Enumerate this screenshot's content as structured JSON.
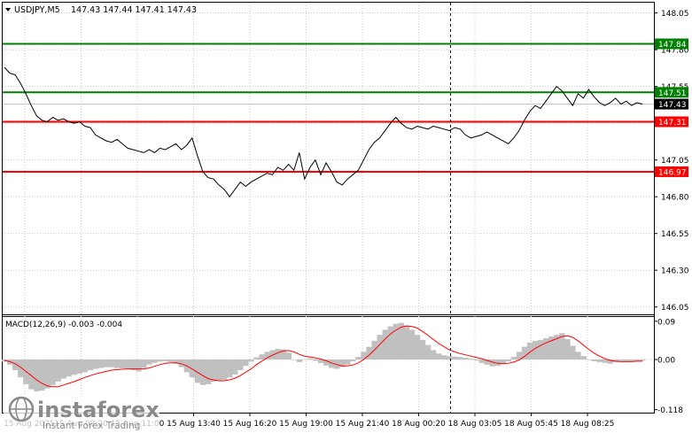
{
  "header": {
    "symbol_label": "USDJPY,M5",
    "ohlc": "147.43 147.44 147.41 147.43"
  },
  "macd_header": {
    "label": "MACD(12,26,9) -0.003 -0.004"
  },
  "watermark": {
    "brand": "instaforex",
    "tagline": "Instant Forex Trading"
  },
  "colors": {
    "price_line": "#000000",
    "resistance": "#008000",
    "support": "#ff0000",
    "macd_hist": "#c0c0c0",
    "macd_signal": "#ff0000",
    "current_price_box": "#000000",
    "grid": "#c8c8c8"
  },
  "chart_data": [
    {
      "type": "line",
      "title": "USDJPY,M5",
      "ylim": [
        146.0,
        148.12
      ],
      "y_ticks": [
        "148.05",
        "147.80",
        "147.55",
        "147.30",
        "147.05",
        "146.80",
        "146.55",
        "146.30",
        "146.05"
      ],
      "y_tick_values": [
        148.05,
        147.8,
        147.55,
        147.3,
        147.05,
        146.8,
        146.55,
        146.3,
        146.05
      ],
      "x_ticks": [
        "15 Aug 2025",
        "15 Aug 08:20",
        "15 Aug 11:00",
        "15 Aug 13:40",
        "15 Aug 16:20",
        "15 Aug 19:00",
        "15 Aug 21:40",
        "18 Aug 00:20",
        "18 Aug 03:05",
        "18 Aug 05:45",
        "18 Aug 08:25"
      ],
      "levels": [
        {
          "value": 147.84,
          "label": "147.84",
          "role": "resistance"
        },
        {
          "value": 147.51,
          "label": "147.51",
          "role": "resistance"
        },
        {
          "value": 147.31,
          "label": "147.31",
          "role": "support"
        },
        {
          "value": 146.97,
          "label": "146.97",
          "role": "support"
        }
      ],
      "current_price": {
        "value": 147.43,
        "label": "147.43"
      },
      "series": [
        {
          "values": [
            147.68,
            147.64,
            147.63,
            147.57,
            147.5,
            147.42,
            147.35,
            147.32,
            147.31,
            147.34,
            147.32,
            147.33,
            147.31,
            147.3,
            147.31,
            147.28,
            147.27,
            147.22,
            147.2,
            147.18,
            147.17,
            147.19,
            147.16,
            147.13,
            147.12,
            147.11,
            147.1,
            147.12,
            147.1,
            147.13,
            147.12,
            147.14,
            147.16,
            147.12,
            147.15,
            147.2,
            147.08,
            146.97,
            146.93,
            146.92,
            146.88,
            146.85,
            146.8,
            146.85,
            146.9,
            146.87,
            146.9,
            146.92,
            146.94,
            146.96,
            146.95,
            147.0,
            146.98,
            147.02,
            146.98,
            147.1,
            146.92,
            147.0,
            147.05,
            146.95,
            147.03,
            146.97,
            146.9,
            146.88,
            146.92,
            146.95,
            146.98,
            147.05,
            147.12,
            147.17,
            147.2,
            147.25,
            147.3,
            147.34,
            147.3,
            147.27,
            147.26,
            147.28,
            147.27,
            147.26,
            147.28,
            147.27,
            147.26,
            147.25,
            147.27,
            147.26,
            147.22,
            147.2,
            147.21,
            147.22,
            147.24,
            147.22,
            147.2,
            147.18,
            147.16,
            147.2,
            147.25,
            147.32,
            147.38,
            147.42,
            147.4,
            147.45,
            147.5,
            147.55,
            147.52,
            147.47,
            147.42,
            147.5,
            147.47,
            147.53,
            147.48,
            147.44,
            147.42,
            147.44,
            147.47,
            147.43,
            147.45,
            147.42,
            147.44,
            147.43
          ]
        }
      ]
    },
    {
      "type": "bar",
      "title": "MACD(12,26,9) -0.003 -0.004",
      "ylim": [
        -0.125,
        0.1
      ],
      "y_ticks": [
        "0.09",
        "0.00",
        "-0.118"
      ],
      "y_tick_values": [
        0.09,
        0.0,
        -0.118
      ],
      "series": [
        {
          "name": "MACD",
          "values": [
            -0.005,
            -0.012,
            -0.025,
            -0.042,
            -0.058,
            -0.07,
            -0.075,
            -0.073,
            -0.068,
            -0.06,
            -0.052,
            -0.045,
            -0.04,
            -0.036,
            -0.033,
            -0.03,
            -0.025,
            -0.022,
            -0.02,
            -0.018,
            -0.018,
            -0.02,
            -0.021,
            -0.022,
            -0.025,
            -0.028,
            -0.02,
            -0.012,
            -0.008,
            -0.005,
            -0.004,
            -0.006,
            -0.01,
            -0.018,
            -0.03,
            -0.042,
            -0.055,
            -0.06,
            -0.058,
            -0.052,
            -0.05,
            -0.048,
            -0.042,
            -0.035,
            -0.025,
            -0.015,
            -0.005,
            0.005,
            0.012,
            0.018,
            0.022,
            0.025,
            0.024,
            0.016,
            0.0,
            -0.006,
            0.0,
            0.003,
            -0.003,
            -0.008,
            -0.014,
            -0.02,
            -0.022,
            -0.018,
            -0.012,
            -0.004,
            0.006,
            0.018,
            0.03,
            0.044,
            0.058,
            0.07,
            0.078,
            0.084,
            0.086,
            0.08,
            0.07,
            0.058,
            0.046,
            0.034,
            0.022,
            0.014,
            0.01,
            0.008,
            0.007,
            0.006,
            0.004,
            0.002,
            -0.002,
            -0.008,
            -0.012,
            -0.016,
            -0.015,
            -0.01,
            -0.004,
            0.006,
            0.018,
            0.03,
            0.04,
            0.044,
            0.046,
            0.05,
            0.054,
            0.058,
            0.062,
            0.048,
            0.032,
            0.018,
            0.008,
            0.0,
            -0.004,
            -0.006,
            -0.008,
            -0.01,
            -0.006,
            -0.004,
            -0.004,
            -0.004,
            -0.003,
            -0.003
          ]
        },
        {
          "name": "Signal",
          "values": [
            -0.002,
            -0.005,
            -0.01,
            -0.018,
            -0.028,
            -0.038,
            -0.048,
            -0.056,
            -0.062,
            -0.064,
            -0.064,
            -0.06,
            -0.056,
            -0.052,
            -0.047,
            -0.042,
            -0.038,
            -0.034,
            -0.031,
            -0.028,
            -0.025,
            -0.024,
            -0.023,
            -0.022,
            -0.022,
            -0.022,
            -0.022,
            -0.02,
            -0.016,
            -0.012,
            -0.009,
            -0.008,
            -0.008,
            -0.01,
            -0.015,
            -0.022,
            -0.03,
            -0.038,
            -0.045,
            -0.048,
            -0.05,
            -0.05,
            -0.048,
            -0.044,
            -0.038,
            -0.03,
            -0.022,
            -0.012,
            -0.004,
            0.004,
            0.01,
            0.016,
            0.02,
            0.021,
            0.018,
            0.012,
            0.008,
            0.006,
            0.004,
            0.001,
            -0.003,
            -0.008,
            -0.012,
            -0.015,
            -0.015,
            -0.013,
            -0.008,
            0.0,
            0.01,
            0.022,
            0.035,
            0.048,
            0.06,
            0.069,
            0.076,
            0.079,
            0.078,
            0.074,
            0.066,
            0.057,
            0.047,
            0.038,
            0.03,
            0.023,
            0.018,
            0.014,
            0.011,
            0.008,
            0.005,
            0.002,
            -0.002,
            -0.006,
            -0.009,
            -0.01,
            -0.009,
            -0.006,
            -0.001,
            0.007,
            0.017,
            0.026,
            0.033,
            0.039,
            0.044,
            0.049,
            0.054,
            0.056,
            0.052,
            0.044,
            0.034,
            0.024,
            0.015,
            0.008,
            0.002,
            -0.002,
            -0.004,
            -0.005,
            -0.005,
            -0.005,
            -0.004,
            -0.004
          ]
        }
      ]
    }
  ]
}
